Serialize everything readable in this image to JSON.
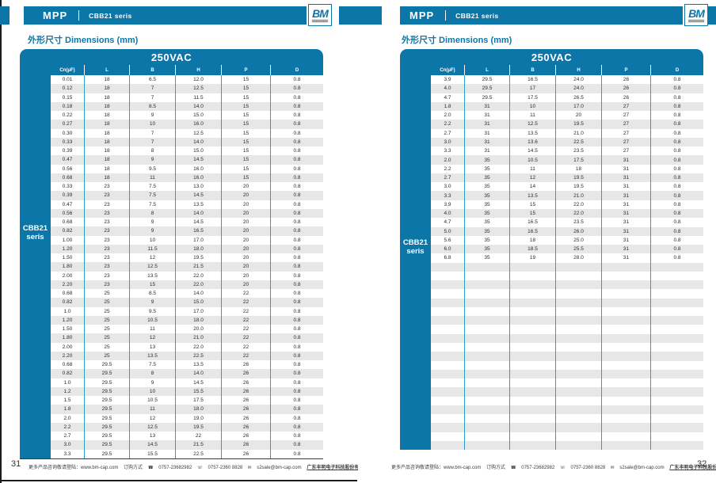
{
  "brand": {
    "logo_text": "BM",
    "accent_color": "#0d76a8",
    "stripe_color": "#e7e7e7",
    "grid_line_color": "#2d9cce"
  },
  "pages": {
    "left": {
      "header": {
        "product": "MPP",
        "series": "CBB21 seris"
      },
      "title": "外形尺寸 Dimensions (mm)",
      "page_number": "31",
      "table": {
        "voltage": "250VAC",
        "side_label_line1": "CBB21",
        "side_label_line2": "seris",
        "columns": [
          "Cn(μF)",
          "L",
          "B",
          "H",
          "P",
          "D"
        ],
        "empty_rows": 0,
        "rows": [
          [
            "0.01",
            "18",
            "6.5",
            "12.0",
            "15",
            "0.8"
          ],
          [
            "0.12",
            "18",
            "7",
            "12.5",
            "15",
            "0.8"
          ],
          [
            "0.15",
            "18",
            "7",
            "11.5",
            "15",
            "0.8"
          ],
          [
            "0.18",
            "18",
            "8.5",
            "14.0",
            "15",
            "0.8"
          ],
          [
            "0.22",
            "18",
            "9",
            "15.0",
            "15",
            "0.8"
          ],
          [
            "0.27",
            "18",
            "10",
            "16.0",
            "15",
            "0.8"
          ],
          [
            "0.30",
            "18",
            "7",
            "12.5",
            "15",
            "0.8"
          ],
          [
            "0.33",
            "18",
            "7",
            "14.0",
            "15",
            "0.8"
          ],
          [
            "0.39",
            "18",
            "8",
            "15.0",
            "15",
            "0.8"
          ],
          [
            "0.47",
            "18",
            "9",
            "14.5",
            "15",
            "0.8"
          ],
          [
            "0.56",
            "18",
            "9.5",
            "16.0",
            "15",
            "0.8"
          ],
          [
            "0.68",
            "18",
            "11",
            "16.0",
            "15",
            "0.8"
          ],
          [
            "0.33",
            "23",
            "7.5",
            "13.0",
            "20",
            "0.8"
          ],
          [
            "0.39",
            "23",
            "7.5",
            "14.5",
            "20",
            "0.8"
          ],
          [
            "0.47",
            "23",
            "7.5",
            "13.5",
            "20",
            "0.8"
          ],
          [
            "0.56",
            "23",
            "8",
            "14.0",
            "20",
            "0.8"
          ],
          [
            "0.68",
            "23",
            "9",
            "14.5",
            "20",
            "0.8"
          ],
          [
            "0.82",
            "23",
            "9",
            "16.5",
            "20",
            "0.8"
          ],
          [
            "1.00",
            "23",
            "10",
            "17.0",
            "20",
            "0.8"
          ],
          [
            "1.20",
            "23",
            "11.5",
            "18.0",
            "20",
            "0.8"
          ],
          [
            "1.50",
            "23",
            "12",
            "19.5",
            "20",
            "0.8"
          ],
          [
            "1.80",
            "23",
            "12.5",
            "21.5",
            "20",
            "0.8"
          ],
          [
            "2.00",
            "23",
            "13.5",
            "22.0",
            "20",
            "0.8"
          ],
          [
            "2.20",
            "23",
            "15",
            "22.0",
            "20",
            "0.8"
          ],
          [
            "0.68",
            "25",
            "8.5",
            "14.0",
            "22",
            "0.8"
          ],
          [
            "0.82",
            "25",
            "9",
            "15.0",
            "22",
            "0.8"
          ],
          [
            "1.0",
            "25",
            "9.5",
            "17.0",
            "22",
            "0.8"
          ],
          [
            "1.20",
            "25",
            "10.5",
            "18.0",
            "22",
            "0.8"
          ],
          [
            "1.50",
            "25",
            "11",
            "20.0",
            "22",
            "0.8"
          ],
          [
            "1.80",
            "25",
            "12",
            "21.0",
            "22",
            "0.8"
          ],
          [
            "2.00",
            "25",
            "13",
            "22.0",
            "22",
            "0.8"
          ],
          [
            "2.20",
            "25",
            "13.5",
            "22.5",
            "22",
            "0.8"
          ],
          [
            "0.68",
            "29.5",
            "7.5",
            "13.5",
            "26",
            "0.8"
          ],
          [
            "0.82",
            "29.5",
            "8",
            "14.0",
            "26",
            "0.8"
          ],
          [
            "1.0",
            "29.5",
            "9",
            "14.5",
            "26",
            "0.8"
          ],
          [
            "1.2",
            "29.5",
            "10",
            "15.5",
            "26",
            "0.8"
          ],
          [
            "1.5",
            "29.5",
            "10.5",
            "17.5",
            "26",
            "0.8"
          ],
          [
            "1.8",
            "29.5",
            "11",
            "18.0",
            "26",
            "0.8"
          ],
          [
            "2.0",
            "29.5",
            "12",
            "19.0",
            "26",
            "0.8"
          ],
          [
            "2.2",
            "29.5",
            "12.5",
            "19.5",
            "26",
            "0.8"
          ],
          [
            "2.7",
            "29.5",
            "13",
            "22",
            "26",
            "0.8"
          ],
          [
            "3.0",
            "29.5",
            "14.5",
            "21.5",
            "26",
            "0.8"
          ],
          [
            "3.3",
            "29.5",
            "15.5",
            "22.5",
            "26",
            "0.8"
          ]
        ]
      }
    },
    "right": {
      "header": {
        "product": "MPP",
        "series": "CBB21 seris"
      },
      "title": "外形尺寸 Dimensions (mm)",
      "page_number": "32",
      "table": {
        "voltage": "250VAC",
        "side_label_line1": "CBB21",
        "side_label_line2": "seris",
        "columns": [
          "Cn(μF)",
          "L",
          "B",
          "H",
          "P",
          "D"
        ],
        "empty_rows": 21,
        "rows": [
          [
            "3.9",
            "29.5",
            "16.5",
            "24.0",
            "26",
            "0.8"
          ],
          [
            "4.0",
            "29.5",
            "17",
            "24.0",
            "26",
            "0.8"
          ],
          [
            "4.7",
            "29.5",
            "17.5",
            "26.5",
            "26",
            "0.8"
          ],
          [
            "1.8",
            "31",
            "10",
            "17.0",
            "27",
            "0.8"
          ],
          [
            "2.0",
            "31",
            "11",
            "20",
            "27",
            "0.8"
          ],
          [
            "2.2",
            "31",
            "12.5",
            "19.5",
            "27",
            "0.8"
          ],
          [
            "2.7",
            "31",
            "13.5",
            "21.0",
            "27",
            "0.8"
          ],
          [
            "3.0",
            "31",
            "13.6",
            "22.5",
            "27",
            "0.8"
          ],
          [
            "3.3",
            "31",
            "14.5",
            "23.5",
            "27",
            "0.8"
          ],
          [
            "2.0",
            "35",
            "10.5",
            "17.5",
            "31",
            "0.8"
          ],
          [
            "2.2",
            "35",
            "11",
            "18",
            "31",
            "0.8"
          ],
          [
            "2.7",
            "35",
            "12",
            "19.5",
            "31",
            "0.8"
          ],
          [
            "3.0",
            "35",
            "14",
            "19.5",
            "31",
            "0.8"
          ],
          [
            "3.3",
            "35",
            "13.5",
            "21.0",
            "31",
            "0.8"
          ],
          [
            "3.9",
            "35",
            "15",
            "22.0",
            "31",
            "0.8"
          ],
          [
            "4.0",
            "35",
            "15",
            "22.0",
            "31",
            "0.8"
          ],
          [
            "4.7",
            "35",
            "16.5",
            "23.5",
            "31",
            "0.8"
          ],
          [
            "5.0",
            "35",
            "16.5",
            "26.0",
            "31",
            "0.8"
          ],
          [
            "5.6",
            "35",
            "18",
            "25.0",
            "31",
            "0.8"
          ],
          [
            "6.0",
            "35",
            "18.5",
            "25.5",
            "31",
            "0.8"
          ],
          [
            "6.8",
            "35",
            "19",
            "28.0",
            "31",
            "0.8"
          ]
        ]
      }
    }
  },
  "footer": {
    "info": "更多产品咨询敬请登陆：www.bm-cap.com",
    "order_label": "订购方式",
    "phone": "0757-23682982",
    "fax": "0757-2360 8828",
    "email": "s2sale@bm-cap.com",
    "company": "广东丰明电子科技股份有限公司"
  }
}
